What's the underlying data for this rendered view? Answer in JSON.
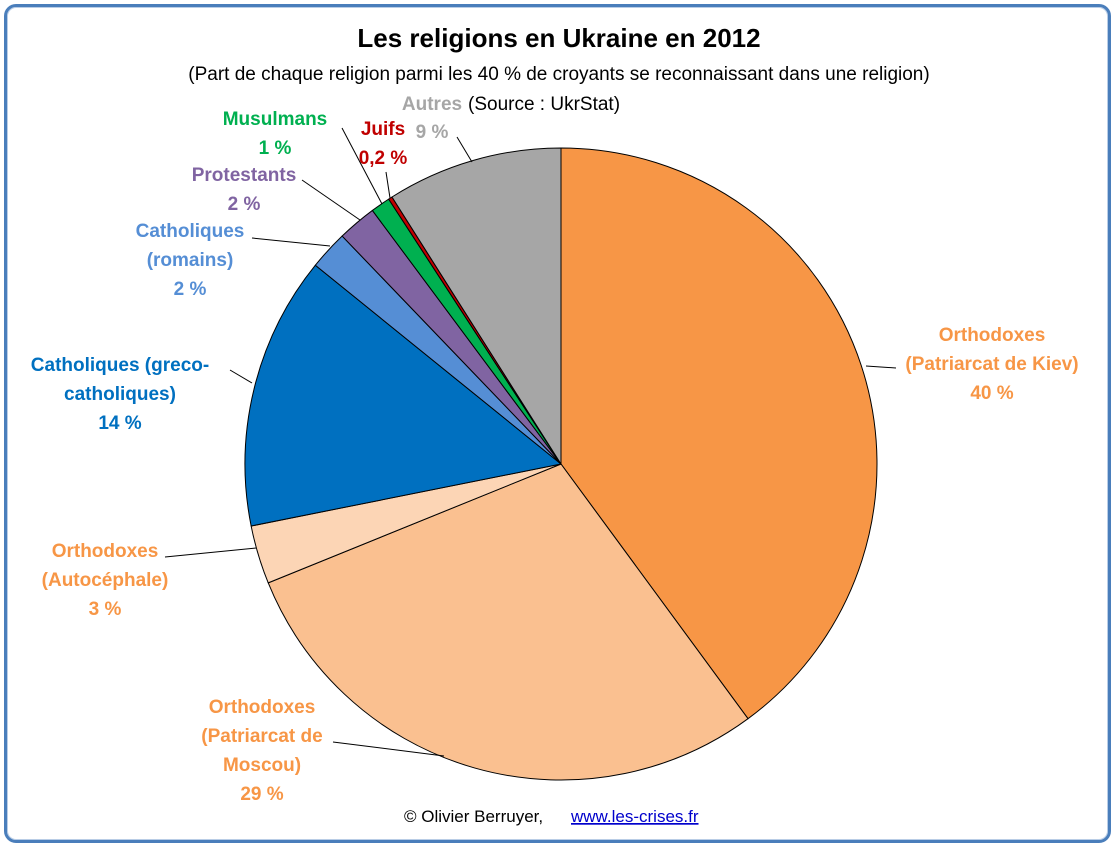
{
  "chart_data": {
    "type": "pie",
    "title": "Les religions en Ukraine en 2012",
    "subtitle": "(Part de chaque religion parmi les 40 % de croyants se reconnaissant dans une religion)",
    "source_label": "(Source : UkrStat)",
    "slices": [
      {
        "id": "orthodoxes-kiev",
        "label_lines": [
          "Orthodoxes",
          "(Patriarcat de Kiev)"
        ],
        "value": 40,
        "value_text": "40 %",
        "color": "#f79646",
        "label_color": "#f79646"
      },
      {
        "id": "orthodoxes-moscou",
        "label_lines": [
          "Orthodoxes",
          "(Patriarcat de",
          "Moscou)"
        ],
        "value": 29,
        "value_text": "29 %",
        "color": "#fac090",
        "label_color": "#f79646"
      },
      {
        "id": "orthodoxes-autocephale",
        "label_lines": [
          "Orthodoxes",
          "(Autocéphale)"
        ],
        "value": 3,
        "value_text": "3 %",
        "color": "#fcd5b5",
        "label_color": "#f79646"
      },
      {
        "id": "catholiques-greco",
        "label_lines": [
          "Catholiques (greco-",
          "catholiques)"
        ],
        "value": 14,
        "value_text": "14 %",
        "color": "#0070c0",
        "label_color": "#0070c0"
      },
      {
        "id": "catholiques-romains",
        "label_lines": [
          "Catholiques",
          "(romains)"
        ],
        "value": 2,
        "value_text": "2 %",
        "color": "#558ed5",
        "label_color": "#558ed5"
      },
      {
        "id": "protestants",
        "label_lines": [
          "Protestants"
        ],
        "value": 2,
        "value_text": "2 %",
        "color": "#8064a2",
        "label_color": "#8064a2"
      },
      {
        "id": "musulmans",
        "label_lines": [
          "Musulmans"
        ],
        "value": 1,
        "value_text": "1 %",
        "color": "#00b050",
        "label_color": "#00b050"
      },
      {
        "id": "juifs",
        "label_lines": [
          "Juifs"
        ],
        "value": 0.2,
        "value_text": "0,2 %",
        "color": "#c00000",
        "label_color": "#c00000"
      },
      {
        "id": "autres",
        "label_lines": [
          "Autres"
        ],
        "value": 9,
        "value_text": "9 %",
        "color": "#a6a6a6",
        "label_color": "#a6a6a6"
      }
    ]
  },
  "footer": {
    "credit": "© Olivier Berruyer,",
    "link": "www.les-crises.fr"
  }
}
